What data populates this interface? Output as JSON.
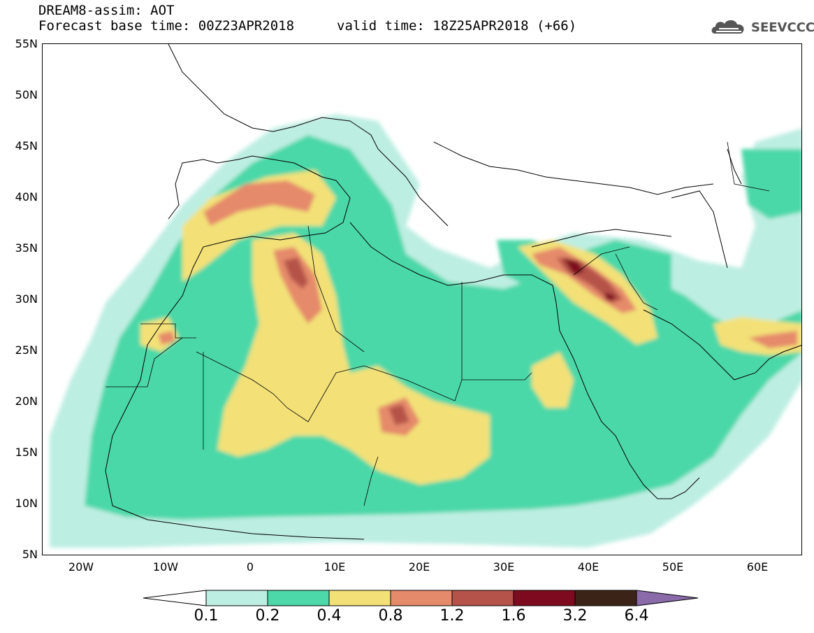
{
  "header": {
    "title_line1": "DREAM8-assim: AOT",
    "title_line2": "Forecast base time: 00Z23APR2018",
    "valid_time": "valid time: 18Z25APR2018 (+66)"
  },
  "logo": {
    "name": "cloud-icon",
    "text": "SEEVCCC"
  },
  "axes": {
    "lat_labels": [
      "55N",
      "50N",
      "45N",
      "40N",
      "35N",
      "30N",
      "25N",
      "20N",
      "15N",
      "10N",
      "5N"
    ],
    "lon_labels": [
      "20W",
      "10W",
      "0",
      "10E",
      "20E",
      "30E",
      "40E",
      "50E",
      "60E"
    ]
  },
  "colorbar": {
    "labels": [
      "0.1",
      "0.2",
      "0.4",
      "0.8",
      "1.2",
      "1.6",
      "3.2",
      "6.4"
    ],
    "colors": [
      "#ffffff",
      "#bdeee2",
      "#4cd8a8",
      "#f3e177",
      "#e58a6a",
      "#b5524a",
      "#7d0a1e",
      "#3b2417",
      "#8a6aa8"
    ]
  },
  "map": {
    "region": "North Africa, Mediterranean and Middle East",
    "lon_range": [
      -25,
      65
    ],
    "lat_range": [
      5,
      55
    ]
  }
}
